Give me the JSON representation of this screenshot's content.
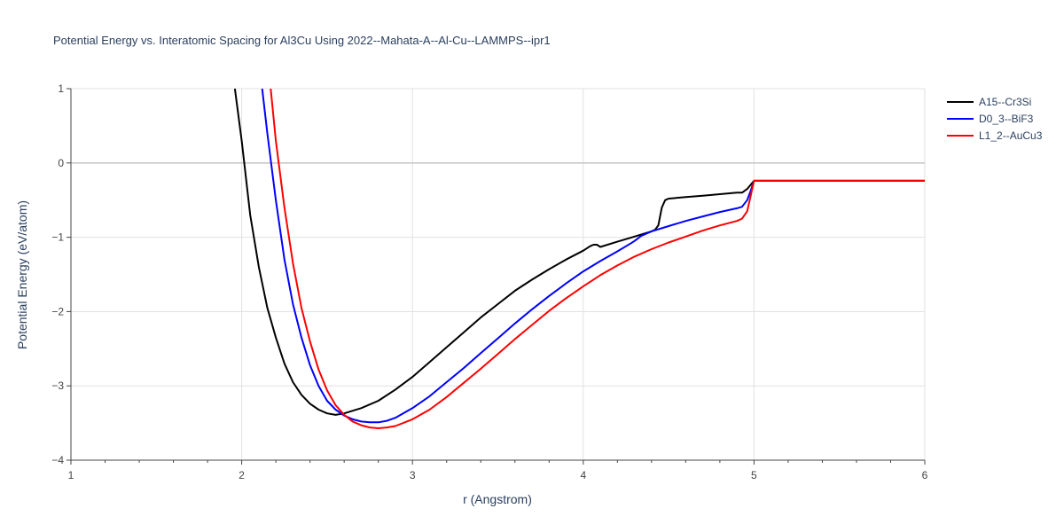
{
  "chart_data": {
    "type": "line",
    "title": "Potential Energy vs. Interatomic Spacing for Al3Cu Using 2022--Mahata-A--Al-Cu--LAMMPS--ipr1",
    "xlabel": "r (Angstrom)",
    "ylabel": "Potential Energy (eV/atom)",
    "xlim": [
      1,
      6
    ],
    "ylim": [
      -4,
      1
    ],
    "x_ticks": [
      "1",
      "2",
      "3",
      "4",
      "5",
      "6"
    ],
    "y_ticks": [
      "1",
      "0",
      "−1",
      "−2",
      "−3",
      "−4"
    ],
    "grid": true,
    "legend_position": "top-right",
    "series": [
      {
        "name": "A15--Cr3Si",
        "color": "#000000",
        "points": [
          [
            1.96,
            1.0
          ],
          [
            2.0,
            0.3
          ],
          [
            2.05,
            -0.7
          ],
          [
            2.1,
            -1.4
          ],
          [
            2.15,
            -1.95
          ],
          [
            2.2,
            -2.35
          ],
          [
            2.25,
            -2.7
          ],
          [
            2.3,
            -2.95
          ],
          [
            2.35,
            -3.12
          ],
          [
            2.4,
            -3.24
          ],
          [
            2.45,
            -3.32
          ],
          [
            2.5,
            -3.37
          ],
          [
            2.55,
            -3.39
          ],
          [
            2.6,
            -3.37
          ],
          [
            2.7,
            -3.3
          ],
          [
            2.8,
            -3.2
          ],
          [
            2.9,
            -3.05
          ],
          [
            3.0,
            -2.88
          ],
          [
            3.1,
            -2.68
          ],
          [
            3.2,
            -2.48
          ],
          [
            3.3,
            -2.28
          ],
          [
            3.4,
            -2.08
          ],
          [
            3.5,
            -1.9
          ],
          [
            3.6,
            -1.72
          ],
          [
            3.7,
            -1.57
          ],
          [
            3.8,
            -1.43
          ],
          [
            3.9,
            -1.3
          ],
          [
            4.0,
            -1.18
          ],
          [
            4.04,
            -1.12
          ],
          [
            4.06,
            -1.1
          ],
          [
            4.08,
            -1.1
          ],
          [
            4.1,
            -1.13
          ],
          [
            4.2,
            -1.06
          ],
          [
            4.3,
            -0.99
          ],
          [
            4.4,
            -0.92
          ],
          [
            4.42,
            -0.9
          ],
          [
            4.44,
            -0.84
          ],
          [
            4.46,
            -0.6
          ],
          [
            4.48,
            -0.5
          ],
          [
            4.5,
            -0.48
          ],
          [
            4.6,
            -0.46
          ],
          [
            4.7,
            -0.44
          ],
          [
            4.8,
            -0.42
          ],
          [
            4.9,
            -0.4
          ],
          [
            4.93,
            -0.4
          ],
          [
            4.96,
            -0.35
          ],
          [
            5.0,
            -0.24
          ],
          [
            6.0,
            -0.24
          ]
        ]
      },
      {
        "name": "D0_3--BiF3",
        "color": "#0000ff",
        "points": [
          [
            2.12,
            1.0
          ],
          [
            2.15,
            0.4
          ],
          [
            2.2,
            -0.5
          ],
          [
            2.25,
            -1.3
          ],
          [
            2.3,
            -1.9
          ],
          [
            2.35,
            -2.35
          ],
          [
            2.4,
            -2.72
          ],
          [
            2.45,
            -3.0
          ],
          [
            2.5,
            -3.2
          ],
          [
            2.55,
            -3.32
          ],
          [
            2.6,
            -3.4
          ],
          [
            2.65,
            -3.45
          ],
          [
            2.7,
            -3.48
          ],
          [
            2.75,
            -3.49
          ],
          [
            2.8,
            -3.49
          ],
          [
            2.85,
            -3.47
          ],
          [
            2.9,
            -3.43
          ],
          [
            3.0,
            -3.3
          ],
          [
            3.1,
            -3.14
          ],
          [
            3.2,
            -2.95
          ],
          [
            3.3,
            -2.76
          ],
          [
            3.4,
            -2.56
          ],
          [
            3.5,
            -2.36
          ],
          [
            3.6,
            -2.16
          ],
          [
            3.7,
            -1.97
          ],
          [
            3.8,
            -1.79
          ],
          [
            3.9,
            -1.62
          ],
          [
            4.0,
            -1.46
          ],
          [
            4.1,
            -1.32
          ],
          [
            4.2,
            -1.19
          ],
          [
            4.28,
            -1.08
          ],
          [
            4.3,
            -1.05
          ],
          [
            4.34,
            -0.98
          ],
          [
            4.4,
            -0.92
          ],
          [
            4.5,
            -0.85
          ],
          [
            4.6,
            -0.78
          ],
          [
            4.7,
            -0.72
          ],
          [
            4.8,
            -0.66
          ],
          [
            4.9,
            -0.61
          ],
          [
            4.93,
            -0.59
          ],
          [
            4.96,
            -0.5
          ],
          [
            4.98,
            -0.38
          ],
          [
            5.0,
            -0.24
          ],
          [
            6.0,
            -0.24
          ]
        ]
      },
      {
        "name": "L1_2--AuCu3",
        "color": "#ff0000",
        "points": [
          [
            2.17,
            1.0
          ],
          [
            2.2,
            0.3
          ],
          [
            2.25,
            -0.6
          ],
          [
            2.3,
            -1.35
          ],
          [
            2.35,
            -1.95
          ],
          [
            2.4,
            -2.4
          ],
          [
            2.45,
            -2.78
          ],
          [
            2.5,
            -3.06
          ],
          [
            2.55,
            -3.26
          ],
          [
            2.6,
            -3.39
          ],
          [
            2.65,
            -3.48
          ],
          [
            2.7,
            -3.53
          ],
          [
            2.75,
            -3.56
          ],
          [
            2.8,
            -3.57
          ],
          [
            2.85,
            -3.56
          ],
          [
            2.9,
            -3.54
          ],
          [
            3.0,
            -3.45
          ],
          [
            3.1,
            -3.32
          ],
          [
            3.2,
            -3.15
          ],
          [
            3.3,
            -2.96
          ],
          [
            3.4,
            -2.77
          ],
          [
            3.5,
            -2.57
          ],
          [
            3.6,
            -2.37
          ],
          [
            3.7,
            -2.18
          ],
          [
            3.8,
            -1.99
          ],
          [
            3.9,
            -1.82
          ],
          [
            4.0,
            -1.66
          ],
          [
            4.1,
            -1.51
          ],
          [
            4.2,
            -1.38
          ],
          [
            4.3,
            -1.26
          ],
          [
            4.4,
            -1.16
          ],
          [
            4.5,
            -1.07
          ],
          [
            4.6,
            -0.99
          ],
          [
            4.7,
            -0.91
          ],
          [
            4.8,
            -0.84
          ],
          [
            4.9,
            -0.78
          ],
          [
            4.93,
            -0.75
          ],
          [
            4.96,
            -0.65
          ],
          [
            4.98,
            -0.45
          ],
          [
            5.0,
            -0.24
          ],
          [
            6.0,
            -0.24
          ]
        ]
      }
    ]
  }
}
